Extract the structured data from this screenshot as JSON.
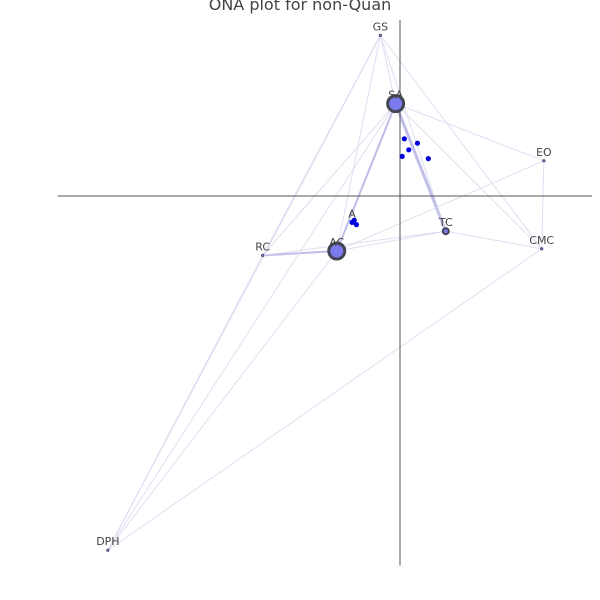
{
  "title": "ONA plot for non-Quan",
  "chart_data": {
    "type": "network",
    "title": "ONA plot for non-Quan",
    "colors": {
      "edge": "#d9d9ef",
      "edge_strong": "#b3b3e6",
      "axis": "#555555",
      "node_fill": "#7b7bef",
      "node_stroke": "#444455",
      "point": "#0000dd"
    },
    "nodes": [
      {
        "label": "GS",
        "x": -0.09,
        "y": 0.73,
        "weight": 0
      },
      {
        "label": "SA",
        "x": -0.02,
        "y": 0.42,
        "weight": 3
      },
      {
        "label": "EO",
        "x": 0.66,
        "y": 0.16,
        "weight": 0
      },
      {
        "label": "TC",
        "x": 0.21,
        "y": -0.16,
        "weight": 1
      },
      {
        "label": "CMC",
        "x": 0.65,
        "y": -0.24,
        "weight": 0
      },
      {
        "label": "AC",
        "x": -0.29,
        "y": -0.25,
        "weight": 3
      },
      {
        "label": "RC",
        "x": -0.63,
        "y": -0.27,
        "weight": 0
      },
      {
        "label": "DPH",
        "x": -1.34,
        "y": -1.61,
        "weight": 0
      },
      {
        "label": "A",
        "x": -0.22,
        "y": -0.12,
        "weight": 0
      }
    ],
    "edges": [
      {
        "from": "SA",
        "to": "TC",
        "strength": 3
      },
      {
        "from": "SA",
        "to": "AC",
        "strength": 2
      },
      {
        "from": "AC",
        "to": "RC",
        "strength": 2
      },
      {
        "from": "AC",
        "to": "TC",
        "strength": 1
      },
      {
        "from": "TC",
        "to": "CMC",
        "strength": 1
      },
      {
        "from": "GS",
        "to": "SA",
        "strength": 1
      },
      {
        "from": "GS",
        "to": "TC",
        "strength": 1
      },
      {
        "from": "GS",
        "to": "CMC",
        "strength": 1
      },
      {
        "from": "GS",
        "to": "RC",
        "strength": 1
      },
      {
        "from": "GS",
        "to": "AC",
        "strength": 1
      },
      {
        "from": "SA",
        "to": "EO",
        "strength": 1
      },
      {
        "from": "SA",
        "to": "CMC",
        "strength": 1
      },
      {
        "from": "SA",
        "to": "RC",
        "strength": 1
      },
      {
        "from": "EO",
        "to": "CMC",
        "strength": 1
      },
      {
        "from": "EO",
        "to": "AC",
        "strength": 1
      },
      {
        "from": "RC",
        "to": "TC",
        "strength": 1
      },
      {
        "from": "DPH",
        "to": "SA",
        "strength": 1
      },
      {
        "from": "DPH",
        "to": "GS",
        "strength": 1
      },
      {
        "from": "DPH",
        "to": "AC",
        "strength": 1
      },
      {
        "from": "DPH",
        "to": "RC",
        "strength": 1
      },
      {
        "from": "DPH",
        "to": "CMC",
        "strength": 1
      }
    ],
    "points": [
      {
        "x": 0.02,
        "y": 0.26
      },
      {
        "x": 0.08,
        "y": 0.24
      },
      {
        "x": 0.04,
        "y": 0.21
      },
      {
        "x": 0.01,
        "y": 0.18
      },
      {
        "x": 0.13,
        "y": 0.17
      },
      {
        "x": -0.21,
        "y": -0.11
      },
      {
        "x": -0.2,
        "y": -0.13
      },
      {
        "x": -0.22,
        "y": -0.12
      }
    ],
    "axes": {
      "xlim": [
        -1.57,
        0.88
      ],
      "ylim": [
        -1.68,
        0.8
      ],
      "grid": false
    }
  }
}
